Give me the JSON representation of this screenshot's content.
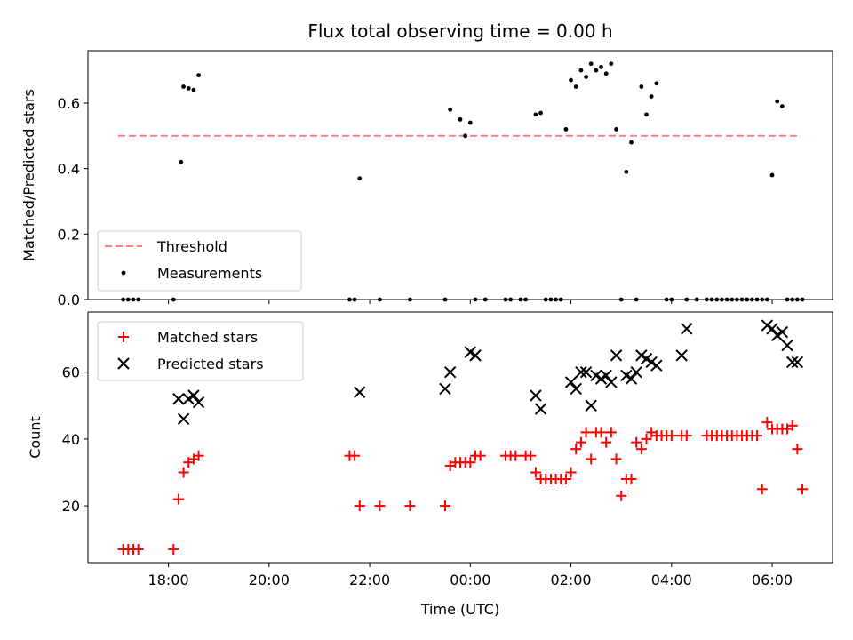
{
  "chart_data": [
    {
      "type": "scatter",
      "title": "Flux total observing time = 0.00 h",
      "ylabel": "Matched/Predicted stars",
      "xlabel": "",
      "x_unit": "hours UTC",
      "xlim": [
        16.4,
        31.2
      ],
      "ylim": [
        0,
        0.76
      ],
      "yticks": [
        0.0,
        0.2,
        0.4,
        0.6
      ],
      "ytick_labels": [
        "0.0",
        "0.2",
        "0.4",
        "0.6"
      ],
      "legend_position": "lower-left",
      "threshold": {
        "name": "Threshold",
        "color": "#ff7f7f",
        "x": [
          17.0,
          30.5
        ],
        "y": [
          0.5,
          0.5
        ]
      },
      "series": [
        {
          "name": "Measurements",
          "color": "#000000",
          "x": [
            17.1,
            17.2,
            17.3,
            17.4,
            18.1,
            18.25,
            18.3,
            18.4,
            18.5,
            18.6,
            21.6,
            21.7,
            21.8,
            22.2,
            22.8,
            23.5,
            23.6,
            23.8,
            23.9,
            24.0,
            24.1,
            24.3,
            24.7,
            24.8,
            25.0,
            25.1,
            25.3,
            25.4,
            25.5,
            25.6,
            25.7,
            25.8,
            25.9,
            26.0,
            26.1,
            26.2,
            26.3,
            26.4,
            26.5,
            26.6,
            26.7,
            26.8,
            26.9,
            27.0,
            27.1,
            27.2,
            27.3,
            27.4,
            27.5,
            27.6,
            27.7,
            27.9,
            28.0,
            28.3,
            28.5,
            28.7,
            28.8,
            28.9,
            29.0,
            29.1,
            29.2,
            29.3,
            29.4,
            29.5,
            29.6,
            29.7,
            29.8,
            29.9,
            30.0,
            30.1,
            30.2,
            30.3,
            30.4,
            30.5,
            30.6
          ],
          "y": [
            0,
            0,
            0,
            0,
            0,
            0.42,
            0.65,
            0.645,
            0.64,
            0.685,
            0,
            0,
            0.37,
            0,
            0,
            0,
            0.58,
            0.55,
            0.5,
            0.54,
            0,
            0,
            0,
            0,
            0,
            0,
            0.565,
            0.57,
            0,
            0,
            0,
            0,
            0.52,
            0.67,
            0.65,
            0.7,
            0.68,
            0.72,
            0.7,
            0.71,
            0.69,
            0.72,
            0.52,
            0,
            0.39,
            0.48,
            0,
            0.65,
            0.565,
            0.62,
            0.66,
            0,
            0,
            0,
            0,
            0,
            0,
            0,
            0,
            0,
            0,
            0,
            0,
            0,
            0,
            0,
            0,
            0,
            0.38,
            0.605,
            0.59,
            0,
            0,
            0,
            0
          ]
        }
      ]
    },
    {
      "type": "scatter",
      "title": "",
      "xlabel": "Time (UTC)",
      "ylabel": "Count",
      "x_unit": "hours UTC",
      "xlim": [
        16.4,
        31.2
      ],
      "ylim": [
        3,
        78
      ],
      "xticks": [
        18,
        20,
        22,
        24,
        26,
        28,
        30
      ],
      "xtick_labels": [
        "18:00",
        "20:00",
        "22:00",
        "00:00",
        "02:00",
        "04:00",
        "06:00"
      ],
      "yticks": [
        20,
        40,
        60
      ],
      "ytick_labels": [
        "20",
        "40",
        "60"
      ],
      "legend_position": "upper-left",
      "series": [
        {
          "name": "Matched stars",
          "marker": "plus",
          "color": "#ff0000",
          "x": [
            17.1,
            17.2,
            17.3,
            17.4,
            18.1,
            18.2,
            18.3,
            18.4,
            18.5,
            18.6,
            21.6,
            21.7,
            21.8,
            22.2,
            22.8,
            23.5,
            23.6,
            23.7,
            23.8,
            23.9,
            24.0,
            24.1,
            24.2,
            24.7,
            24.8,
            24.9,
            25.1,
            25.2,
            25.3,
            25.4,
            25.5,
            25.6,
            25.7,
            25.8,
            25.9,
            26.0,
            26.1,
            26.2,
            26.3,
            26.4,
            26.5,
            26.6,
            26.7,
            26.8,
            26.9,
            27.0,
            27.1,
            27.2,
            27.3,
            27.4,
            27.5,
            27.6,
            27.7,
            27.8,
            27.9,
            28.0,
            28.2,
            28.3,
            28.7,
            28.8,
            28.9,
            29.0,
            29.1,
            29.2,
            29.3,
            29.4,
            29.5,
            29.6,
            29.7,
            29.8,
            29.9,
            30.0,
            30.1,
            30.2,
            30.3,
            30.4,
            30.5,
            30.6
          ],
          "y": [
            7,
            7,
            7,
            7,
            7,
            22,
            30,
            33,
            34,
            35,
            35,
            35,
            20,
            20,
            20,
            20,
            32,
            33,
            33,
            33,
            33,
            35,
            35,
            35,
            35,
            35,
            35,
            35,
            30,
            28,
            28,
            28,
            28,
            28,
            28,
            30,
            37,
            39,
            42,
            34,
            42,
            42,
            39,
            42,
            34,
            23,
            28,
            28,
            39,
            37,
            40,
            42,
            41,
            41,
            41,
            41,
            41,
            41,
            41,
            41,
            41,
            41,
            41,
            41,
            41,
            41,
            41,
            41,
            41,
            25,
            45,
            43,
            43,
            43,
            43,
            44,
            37,
            25
          ]
        },
        {
          "name": "Predicted stars",
          "marker": "x",
          "color": "#000000",
          "x": [
            18.2,
            18.3,
            18.4,
            18.5,
            18.6,
            21.8,
            23.5,
            23.6,
            24.0,
            24.1,
            25.3,
            25.4,
            26.0,
            26.1,
            26.2,
            26.3,
            26.4,
            26.5,
            26.6,
            26.7,
            26.8,
            26.9,
            27.1,
            27.2,
            27.3,
            27.4,
            27.5,
            27.6,
            27.7,
            28.2,
            28.3,
            29.9,
            30.0,
            30.1,
            30.2,
            30.3,
            30.4,
            30.5
          ],
          "y": [
            52,
            46,
            52,
            53,
            51,
            54,
            55,
            60,
            66,
            65,
            53,
            49,
            57,
            55,
            60,
            60,
            50,
            59,
            58,
            59,
            57,
            65,
            59,
            58,
            60,
            65,
            64,
            63,
            62,
            65,
            73,
            74,
            73,
            71,
            72,
            68,
            63,
            63
          ]
        }
      ]
    }
  ]
}
